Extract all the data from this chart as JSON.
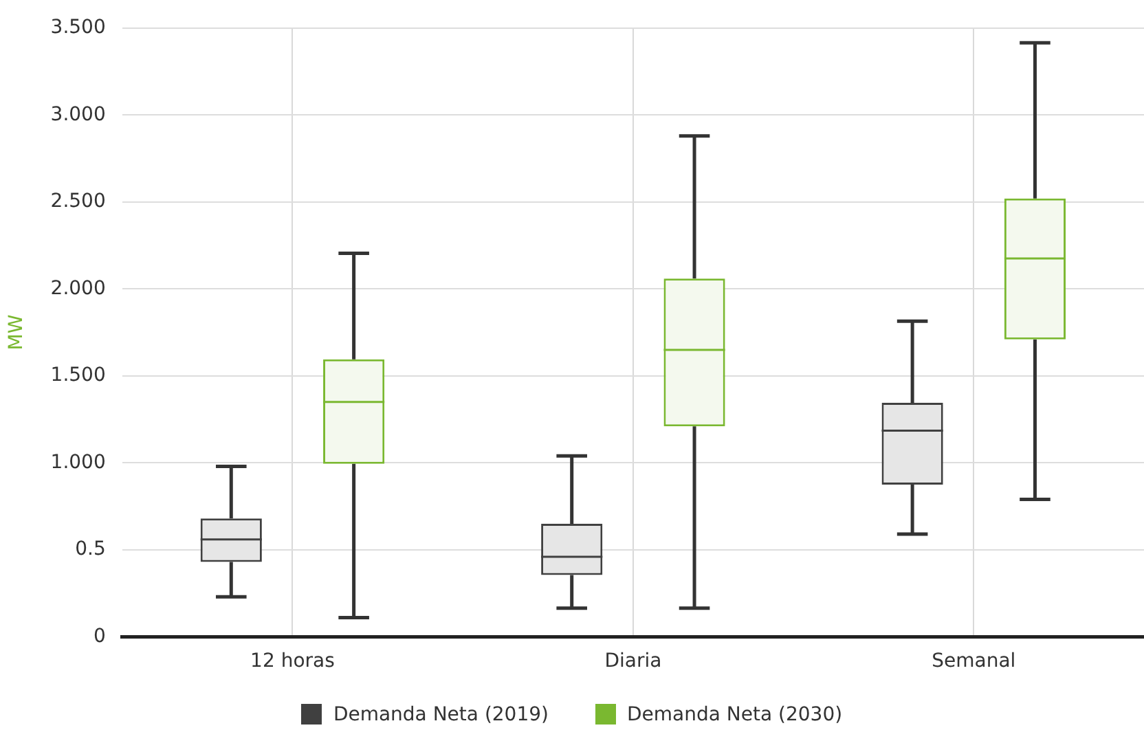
{
  "chart_data": {
    "type": "box",
    "ylabel": "MW",
    "categories": [
      "12 horas",
      "Diaria",
      "Semanal"
    ],
    "ylim": [
      0,
      3.5
    ],
    "yticks": [
      0,
      0.5,
      {
        "value": 1,
        "label": "1.000"
      },
      {
        "value": 1.5,
        "label": "1.500"
      },
      {
        "value": 2,
        "label": "2.000"
      },
      {
        "value": 2.5,
        "label": "2.500"
      },
      {
        "value": 3,
        "label": "3.000"
      },
      {
        "value": 3.5,
        "label": "3.500"
      }
    ],
    "grid": true,
    "legend": "bottom",
    "series": [
      {
        "name": "Demanda Neta (2019)",
        "color": "#404040",
        "boxes": [
          {
            "low": 0.23,
            "q1": 0.43,
            "median": 0.56,
            "q3": 0.68,
            "high": 0.98
          },
          {
            "low": 0.165,
            "q1": 0.355,
            "median": 0.46,
            "q3": 0.65,
            "high": 1.04
          },
          {
            "low": 0.59,
            "q1": 0.875,
            "median": 1.185,
            "q3": 1.345,
            "high": 1.815
          }
        ]
      },
      {
        "name": "Demanda Neta (2030)",
        "color": "#7ab830",
        "boxes": [
          {
            "low": 0.11,
            "q1": 0.995,
            "median": 1.35,
            "q3": 1.595,
            "high": 2.205
          },
          {
            "low": 0.165,
            "q1": 1.21,
            "median": 1.65,
            "q3": 2.06,
            "high": 2.88
          },
          {
            "low": 0.79,
            "q1": 1.71,
            "median": 2.175,
            "q3": 2.52,
            "high": 3.415
          }
        ]
      }
    ]
  }
}
